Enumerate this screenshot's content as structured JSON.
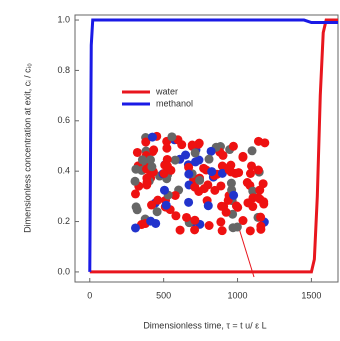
{
  "chart_data": {
    "type": "line",
    "x_label": "Dimensionless time, τ = t u/ ε L",
    "y_label": "Dimensionless concentration at exit, cᵢ / cᵢ₀",
    "xlim": [
      -100,
      1680
    ],
    "xticks": [
      0,
      500,
      1000,
      1500
    ],
    "ylim": [
      -0.04,
      1.02
    ],
    "yticks": [
      {
        "value": 0,
        "label": "0.0"
      },
      {
        "value": 0.2,
        "label": "0.2"
      },
      {
        "value": 0.4,
        "label": "0.4"
      },
      {
        "value": 0.6,
        "label": "0.6"
      },
      {
        "value": 0.8,
        "label": "0.8"
      },
      {
        "value": 1,
        "label": "1.0"
      }
    ],
    "series": [
      {
        "name": "water",
        "color": "#e8161e",
        "x": [
          0,
          1500,
          1520,
          1540,
          1560,
          1580,
          1600,
          1680
        ],
        "values": [
          0,
          0,
          0.05,
          0.3,
          0.7,
          0.95,
          1.0,
          1.0
        ]
      },
      {
        "name": "methanol",
        "color": "#1a1ae6",
        "x": [
          0,
          10,
          20,
          1400,
          1450,
          1500,
          1550,
          1680
        ],
        "values": [
          0,
          0.9,
          1.0,
          1.0,
          1.0,
          0.99,
          0.99,
          0.99
        ]
      }
    ]
  }
}
